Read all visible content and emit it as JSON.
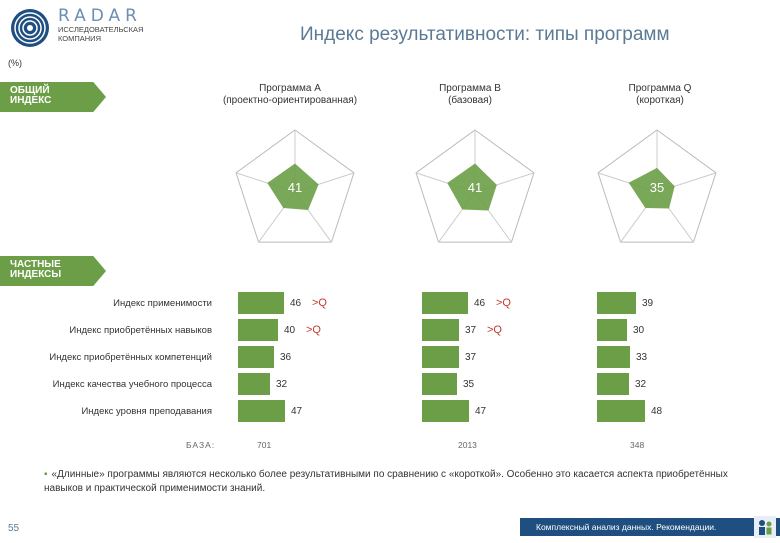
{
  "header": {
    "logo_word": "RADAR",
    "logo_sub": "ИССЛЕДОВАТЕЛЬСКАЯ КОМПАНИЯ",
    "title": "Индекс результативности: типы программ",
    "unit": "(%)"
  },
  "sections": {
    "general": "ОБЩИЙ ИНДЕКС",
    "private": "ЧАСТНЫЕ ИНДЕКСЫ"
  },
  "colors": {
    "accent_green": "#6c9e47",
    "title_blue": "#5b7a96",
    "footer_blue": "#1f4f80",
    "comparison_red": "#c0392b"
  },
  "programs": [
    {
      "name": "Программа А",
      "subtitle": "(проектно-ориентированная)",
      "overall": "41"
    },
    {
      "name": "Программа В",
      "subtitle": "(базовая)",
      "overall": "41"
    },
    {
      "name": "Программа Q",
      "subtitle": "(короткая)",
      "overall": "35"
    }
  ],
  "chart_data": {
    "type": "bar",
    "categories": [
      "Индекс применимости",
      "Индекс приобретённых навыков",
      "Индекс приобретённых компетенций",
      "Индекс качества учебного процесса",
      "Индекс уровня преподавания"
    ],
    "series": [
      {
        "name": "Программа А",
        "values": [
          46,
          40,
          36,
          32,
          47
        ]
      },
      {
        "name": "Программа В",
        "values": [
          46,
          37,
          37,
          35,
          47
        ]
      },
      {
        "name": "Программа Q",
        "values": [
          39,
          30,
          33,
          32,
          48
        ]
      }
    ],
    "comparisons": [
      {
        "series": 0,
        "row": 0,
        "text": ">Q"
      },
      {
        "series": 0,
        "row": 1,
        "text": ">Q"
      },
      {
        "series": 1,
        "row": 0,
        "text": ">Q"
      },
      {
        "series": 1,
        "row": 1,
        "text": ">Q"
      }
    ],
    "overall_index": [
      41,
      41,
      35
    ],
    "base_label": "БАЗА:",
    "base_values": [
      "701",
      "2013",
      "348"
    ]
  },
  "note": "«Длинные» программы являются несколько более результативными по сравнению с «короткой». Особенно это касается аспекта приобретённых навыков и практической применимости знаний.",
  "footer": {
    "page": "55",
    "text": "Комплексный анализ данных. Рекомендации."
  }
}
